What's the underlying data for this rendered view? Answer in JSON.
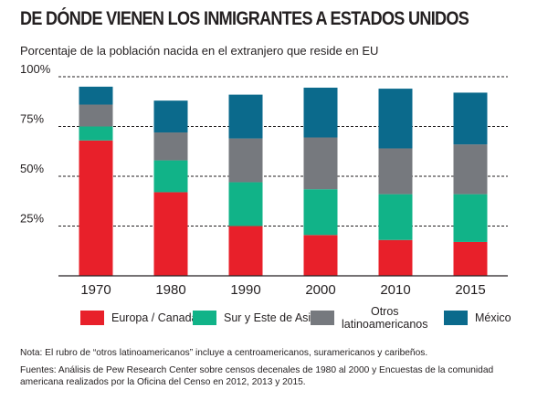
{
  "header": {
    "title": "DE DÓNDE VIENEN LOS INMIGRANTES A ESTADOS UNIDOS",
    "subtitle": "Porcentaje de la población nacida en el extranjero que reside en EU"
  },
  "colors": {
    "europa": "#e8202a",
    "asia": "#11b388",
    "otros": "#76797e",
    "mexico": "#0b6a8c",
    "axis": "#231f20"
  },
  "chart_data": {
    "type": "bar",
    "stacked": true,
    "title": "DE DÓNDE VIENEN LOS INMIGRANTES A ESTADOS UNIDOS",
    "ylabel": "Porcentaje de la población nacida en el extranjero que reside en EU",
    "xlabel": "",
    "categories": [
      "1970",
      "1980",
      "1990",
      "2000",
      "2010",
      "2015"
    ],
    "ylim": [
      0,
      100
    ],
    "yticks": [
      25,
      50,
      75,
      100
    ],
    "ytick_labels": [
      "25%",
      "50%",
      "75%",
      "100%"
    ],
    "series": [
      {
        "name": "Europa / Canada",
        "key": "europa",
        "values": [
          68,
          42,
          25,
          20.5,
          18,
          17
        ]
      },
      {
        "name": "Sur y Este de Asia",
        "key": "asia",
        "values": [
          7,
          16,
          22,
          23,
          23,
          24
        ]
      },
      {
        "name": "Otros latinoamericanos",
        "key": "otros",
        "values": [
          11,
          14,
          22,
          26,
          23,
          25
        ]
      },
      {
        "name": "México",
        "key": "mexico",
        "values": [
          9,
          16,
          22,
          25,
          30,
          26
        ]
      }
    ]
  },
  "legend": {
    "items": [
      {
        "key": "europa",
        "label": "Europa / Canada"
      },
      {
        "key": "asia",
        "label": "Sur y Este de Asia"
      },
      {
        "key": "otros",
        "label_line1": "Otros",
        "label_line2": "latinoamericanos"
      },
      {
        "key": "mexico",
        "label": "México"
      }
    ]
  },
  "footer": {
    "note": "Nota: El rubro de “otros latinoamericanos” incluye a centroamericanos, suramericanos y caribeños.",
    "sources": "Fuentes: Análisis de Pew Research Center sobre censos decenales de 1980 al 2000 y Encuestas de la comunidad americana realizados por la Oficina del Censo en 2012, 2013 y 2015."
  }
}
